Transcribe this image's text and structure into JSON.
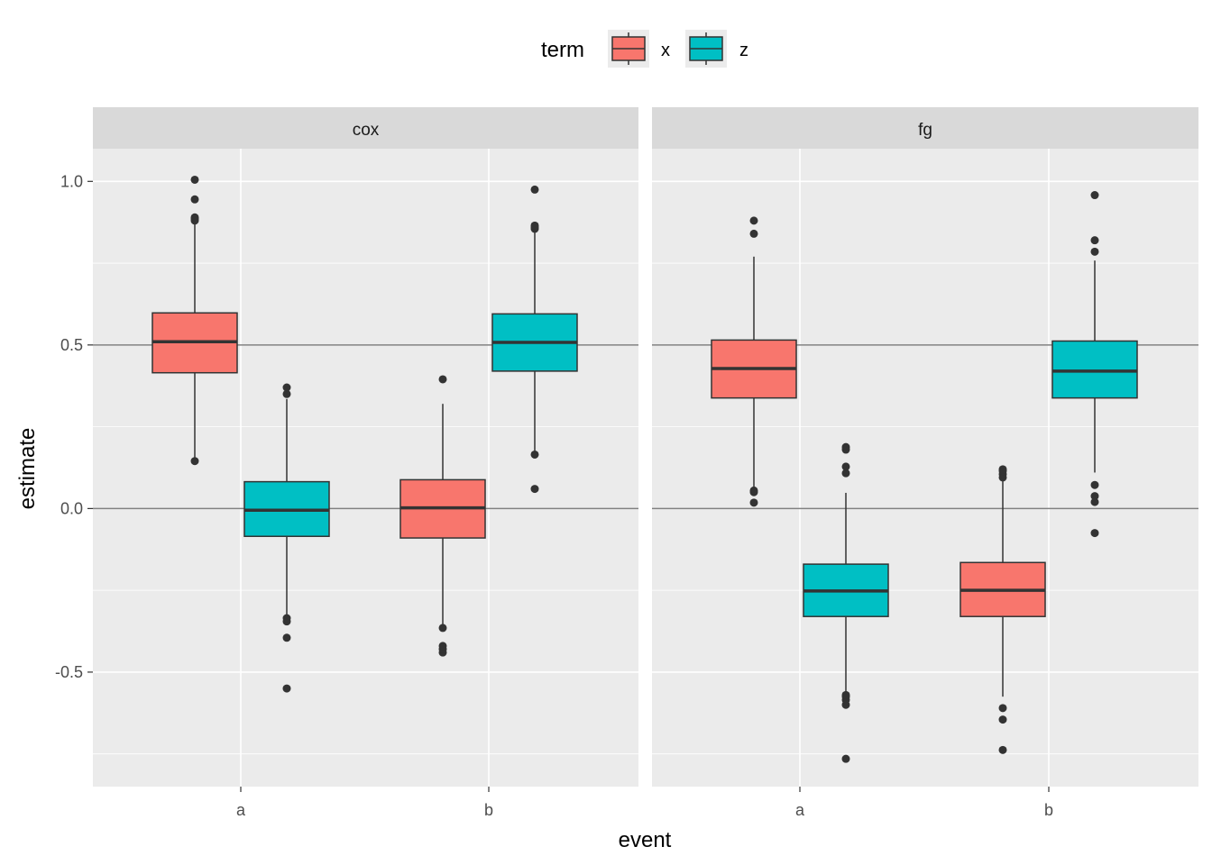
{
  "chart_data": {
    "type": "boxplot",
    "xlabel": "event",
    "ylabel": "estimate",
    "ylim": [
      -0.85,
      1.1
    ],
    "yticks": [
      -0.5,
      0.0,
      0.5,
      1.0
    ],
    "ytick_labels": [
      "-0.5",
      "0.0",
      "0.5",
      "1.0"
    ],
    "categories": [
      "a",
      "b"
    ],
    "reference_lines": [
      0.0,
      0.5
    ],
    "legend": {
      "title": "term",
      "position": "top",
      "entries": [
        {
          "name": "x",
          "color": "#F8766D"
        },
        {
          "name": "z",
          "color": "#00BFC4"
        }
      ]
    },
    "panels": [
      {
        "name": "cox",
        "boxes": [
          {
            "event": "a",
            "term": "x",
            "q1": 0.415,
            "median": 0.51,
            "q3": 0.598,
            "whisker_low": 0.155,
            "whisker_high": 0.875,
            "outliers": [
              0.145,
              0.88,
              0.885,
              0.89,
              0.945,
              1.005
            ]
          },
          {
            "event": "a",
            "term": "z",
            "q1": -0.085,
            "median": -0.005,
            "q3": 0.082,
            "whisker_low": -0.335,
            "whisker_high": 0.335,
            "outliers": [
              -0.55,
              -0.395,
              -0.345,
              -0.335,
              0.35,
              0.37
            ]
          },
          {
            "event": "b",
            "term": "x",
            "q1": -0.09,
            "median": 0.002,
            "q3": 0.088,
            "whisker_low": -0.36,
            "whisker_high": 0.32,
            "outliers": [
              -0.44,
              -0.43,
              -0.42,
              -0.365,
              0.395
            ]
          },
          {
            "event": "b",
            "term": "z",
            "q1": 0.42,
            "median": 0.508,
            "q3": 0.595,
            "whisker_low": 0.17,
            "whisker_high": 0.85,
            "outliers": [
              0.06,
              0.165,
              0.855,
              0.86,
              0.865,
              0.975
            ]
          }
        ]
      },
      {
        "name": "fg",
        "boxes": [
          {
            "event": "a",
            "term": "x",
            "q1": 0.338,
            "median": 0.428,
            "q3": 0.515,
            "whisker_low": 0.06,
            "whisker_high": 0.77,
            "outliers": [
              0.018,
              0.05,
              0.055,
              0.84,
              0.88
            ]
          },
          {
            "event": "a",
            "term": "z",
            "q1": -0.33,
            "median": -0.252,
            "q3": -0.17,
            "whisker_low": -0.565,
            "whisker_high": 0.048,
            "outliers": [
              -0.765,
              -0.6,
              -0.585,
              -0.575,
              -0.57,
              0.108,
              0.128,
              0.18,
              0.188
            ]
          },
          {
            "event": "b",
            "term": "x",
            "q1": -0.33,
            "median": -0.25,
            "q3": -0.165,
            "whisker_low": -0.575,
            "whisker_high": 0.085,
            "outliers": [
              -0.738,
              -0.645,
              -0.61,
              0.095,
              0.105,
              0.115,
              0.12
            ]
          },
          {
            "event": "b",
            "term": "z",
            "q1": 0.338,
            "median": 0.42,
            "q3": 0.512,
            "whisker_low": 0.11,
            "whisker_high": 0.758,
            "outliers": [
              -0.075,
              0.02,
              0.038,
              0.072,
              0.785,
              0.82,
              0.958
            ]
          }
        ]
      }
    ]
  }
}
